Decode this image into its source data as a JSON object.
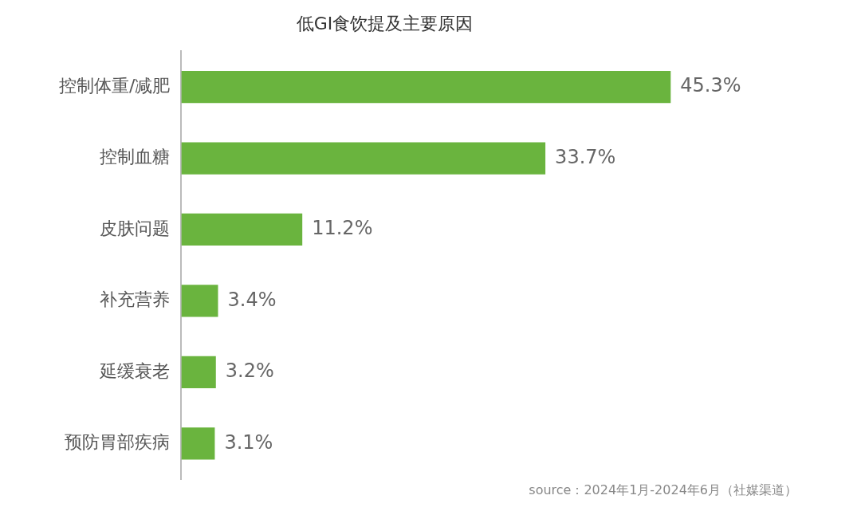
{
  "chart_data": {
    "type": "bar",
    "orientation": "horizontal",
    "title": "低GI食饮提及主要原因",
    "categories": [
      "控制体重/减肥",
      "控制血糖",
      "皮肤问题",
      "补充营养",
      "延缓衰老",
      "预防胃部疾病"
    ],
    "values": [
      45.3,
      33.7,
      11.2,
      3.4,
      3.2,
      3.1
    ],
    "color": "#6ab43e",
    "value_labels": [
      "45.3%",
      "33.7%",
      "11.2%",
      "3.4%",
      "3.2%",
      "3.1%"
    ],
    "legend": false,
    "annotations": [
      "source：2024年1月-2024年6月（社媒渠道）"
    ]
  }
}
